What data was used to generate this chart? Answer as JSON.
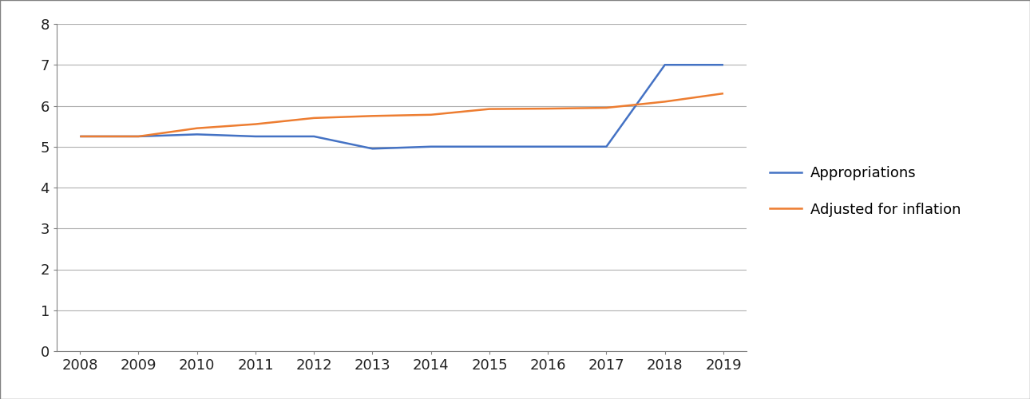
{
  "years": [
    2008,
    2009,
    2010,
    2011,
    2012,
    2013,
    2014,
    2015,
    2016,
    2017,
    2018,
    2019
  ],
  "appropriations": [
    5.25,
    5.25,
    5.3,
    5.25,
    5.25,
    4.95,
    5.0,
    5.0,
    5.0,
    5.0,
    7.0,
    7.0
  ],
  "adjusted_for_inflation": [
    5.25,
    5.25,
    5.45,
    5.55,
    5.7,
    5.75,
    5.78,
    5.92,
    5.93,
    5.95,
    6.1,
    6.3
  ],
  "appropriations_color": "#4472c4",
  "inflation_color": "#ed7d31",
  "legend_labels": [
    "Appropriations",
    "Adjusted for inflation"
  ],
  "ylim": [
    0,
    8
  ],
  "yticks": [
    0,
    1,
    2,
    3,
    4,
    5,
    6,
    7,
    8
  ],
  "background_color": "#ffffff",
  "grid_color": "#b0b0b0",
  "line_width": 1.8,
  "font_size": 13,
  "border_color": "#808080"
}
